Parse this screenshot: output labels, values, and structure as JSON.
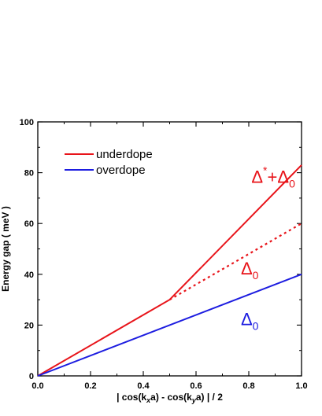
{
  "chart_data": {
    "type": "line",
    "xlabel_parts": {
      "a": "| cos(k",
      "a_sub": "x",
      "b": "a) - cos(k",
      "b_sub": "y",
      "c": "a) | / 2"
    },
    "ylabel": "Energy gap ( meV )",
    "xlim": [
      0.0,
      1.0
    ],
    "ylim": [
      0,
      100
    ],
    "xticks": [
      "0.0",
      "0.2",
      "0.4",
      "0.6",
      "0.8",
      "1.0"
    ],
    "yticks": [
      "0",
      "20",
      "40",
      "60",
      "80",
      "100"
    ],
    "grid": false,
    "legend_position": "top-left",
    "series": [
      {
        "name": "underdope",
        "color": "#e8141a",
        "style": "solid",
        "x": [
          0.0,
          0.5,
          1.0
        ],
        "y": [
          0,
          30,
          83
        ]
      },
      {
        "name": "",
        "color": "#e8141a",
        "style": "dotted",
        "x": [
          0.5,
          1.0
        ],
        "y": [
          30,
          60
        ]
      },
      {
        "name": "overdope",
        "color": "#1d1de0",
        "style": "solid",
        "x": [
          0.0,
          1.0
        ],
        "y": [
          0,
          40
        ]
      }
    ],
    "annotations": [
      {
        "id": "delta_star_plus_delta0",
        "color": "#e8141a",
        "delta": "Δ",
        "sup": "*",
        "plus": "+",
        "delta2": "Δ",
        "sub": "0",
        "x": 0.81,
        "y": 76
      },
      {
        "id": "delta0_red",
        "color": "#e8141a",
        "delta": "Δ",
        "sub": "0",
        "x": 0.77,
        "y": 40
      },
      {
        "id": "delta0_blue",
        "color": "#1d1de0",
        "delta": "Δ",
        "sub": "0",
        "x": 0.77,
        "y": 20
      }
    ]
  }
}
